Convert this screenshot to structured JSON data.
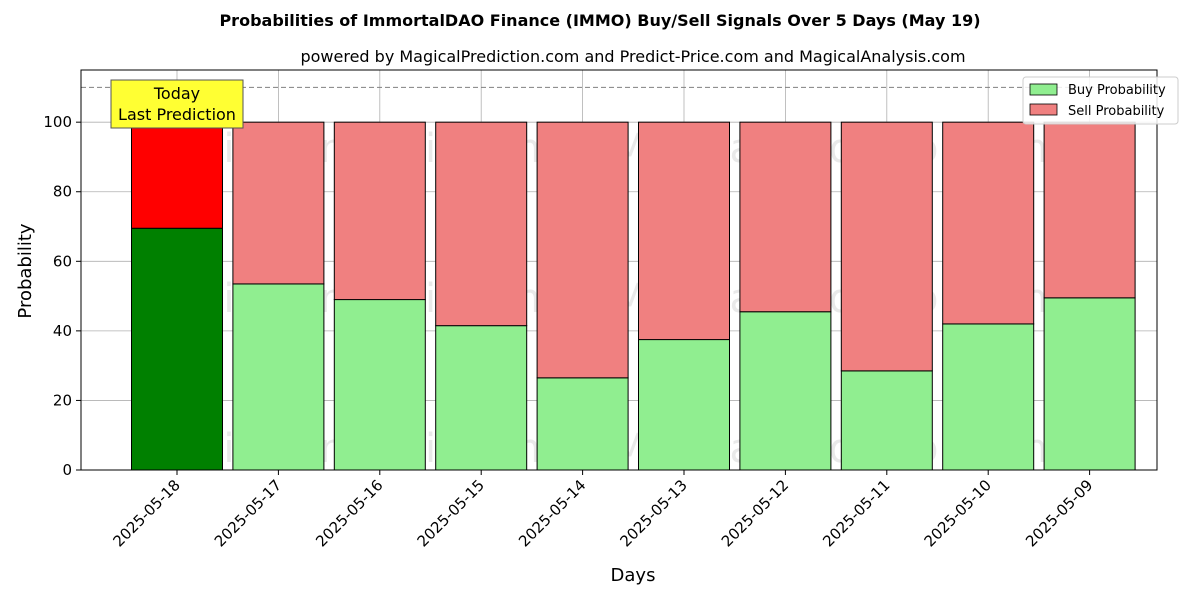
{
  "chart_data": {
    "type": "bar",
    "stacked": true,
    "title": "Probabilities of ImmortalDAO Finance (IMMO) Buy/Sell Signals Over 5 Days (May 19)",
    "subtitle": "powered by MagicalPrediction.com and Predict-Price.com and MagicalAnalysis.com",
    "xlabel": "Days",
    "ylabel": "Probability",
    "ylim": [
      0,
      115
    ],
    "yticks": [
      0,
      20,
      40,
      60,
      80,
      100
    ],
    "reference_line": 110,
    "grid": true,
    "legend_position": "top-right",
    "categories": [
      "2025-05-18",
      "2025-05-17",
      "2025-05-16",
      "2025-05-15",
      "2025-05-14",
      "2025-05-13",
      "2025-05-12",
      "2025-05-11",
      "2025-05-10",
      "2025-05-09"
    ],
    "series": [
      {
        "name": "Buy Probability",
        "values": [
          69.5,
          53.5,
          49,
          41.5,
          26.5,
          37.5,
          45.5,
          28.5,
          42,
          49.5
        ]
      },
      {
        "name": "Sell Probability",
        "values": [
          30.5,
          46.5,
          51,
          58.5,
          73.5,
          62.5,
          54.5,
          71.5,
          58,
          50.5
        ]
      }
    ],
    "colors": {
      "buy": "#90ee90",
      "sell": "#f08080",
      "today_buy": "#008000",
      "today_sell": "#ff0000",
      "annotation_bg": "#ffff33"
    },
    "annotation": {
      "line1": "Today",
      "line2": "Last Prediction",
      "category_index": 0
    },
    "watermarks": [
      "MagicalAnalysis.com",
      "MagicalPrediction.com"
    ]
  }
}
